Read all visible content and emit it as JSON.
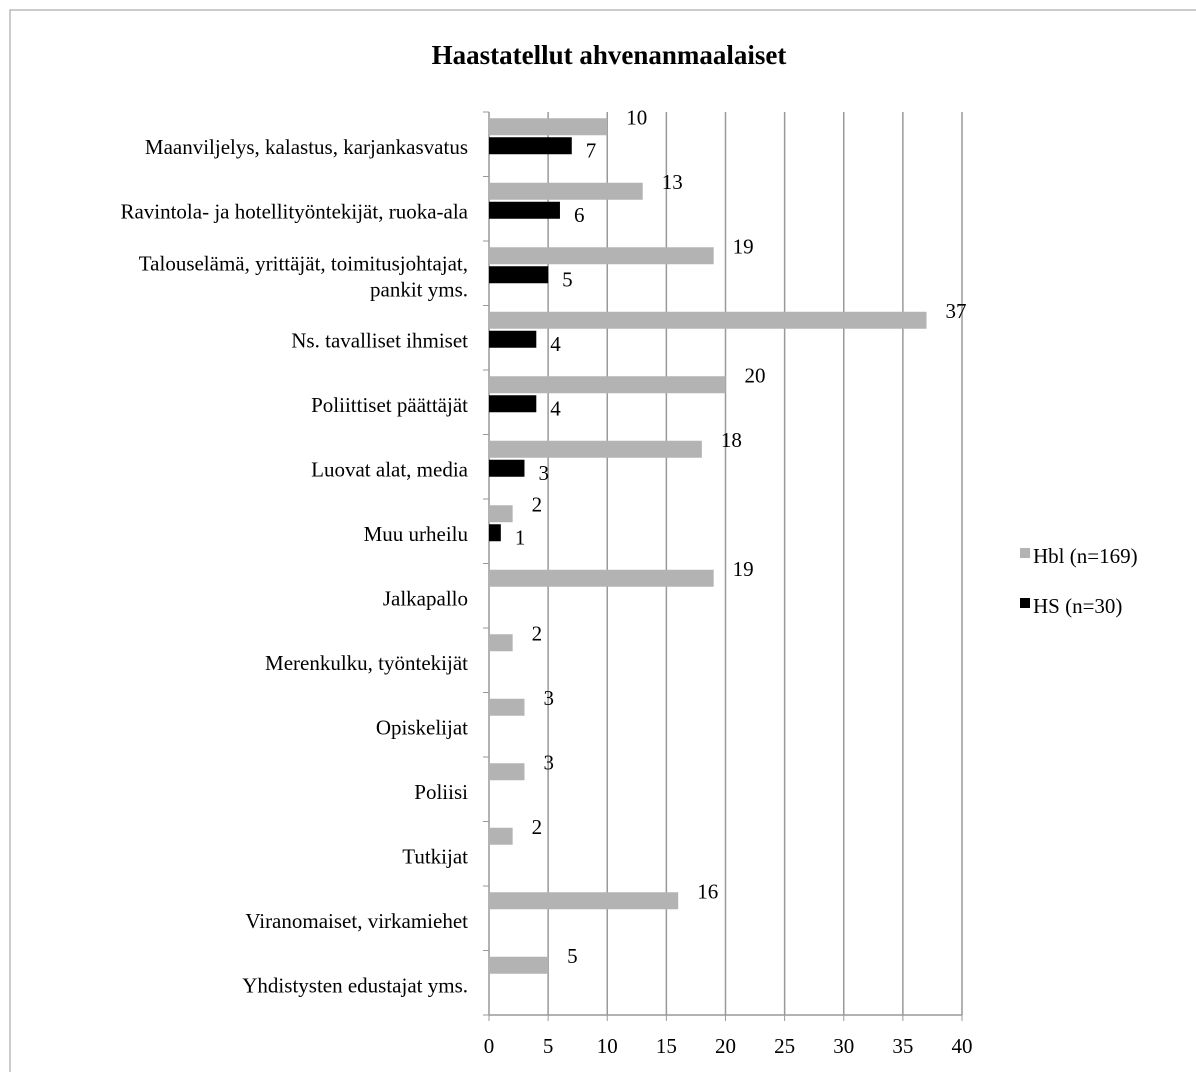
{
  "chart_data": {
    "type": "bar",
    "orientation": "horizontal",
    "title": "Haastatellut ahvenanmaalaiset",
    "categories": [
      "Maanviljelys, kalastus, karjankasvatus",
      "Ravintola- ja hotellityöntekijät, ruoka-ala",
      "Talouselämä, yrittäjät, toimitusjohtajat,\npankit yms.",
      "Ns. tavalliset ihmiset",
      "Poliittiset päättäjät",
      "Luovat alat, media",
      "Muu urheilu",
      "Jalkapallo",
      "Merenkulku, työntekijät",
      "Opiskelijat",
      "Poliisi",
      "Tutkijat",
      "Viranomaiset, virkamiehet",
      "Yhdistysten edustajat yms."
    ],
    "series": [
      {
        "name": "Hbl (n=169)",
        "color": "#b3b3b3",
        "values": [
          10,
          13,
          19,
          37,
          20,
          18,
          2,
          19,
          2,
          3,
          3,
          2,
          16,
          5
        ]
      },
      {
        "name": "HS (n=30)",
        "color": "#000000",
        "values": [
          7,
          6,
          5,
          4,
          4,
          3,
          1,
          null,
          null,
          null,
          null,
          null,
          null,
          null
        ]
      }
    ],
    "xlim": [
      0,
      40
    ],
    "xticks": [
      0,
      5,
      10,
      15,
      20,
      25,
      30,
      35,
      40
    ],
    "grid": true,
    "legend": "right"
  }
}
